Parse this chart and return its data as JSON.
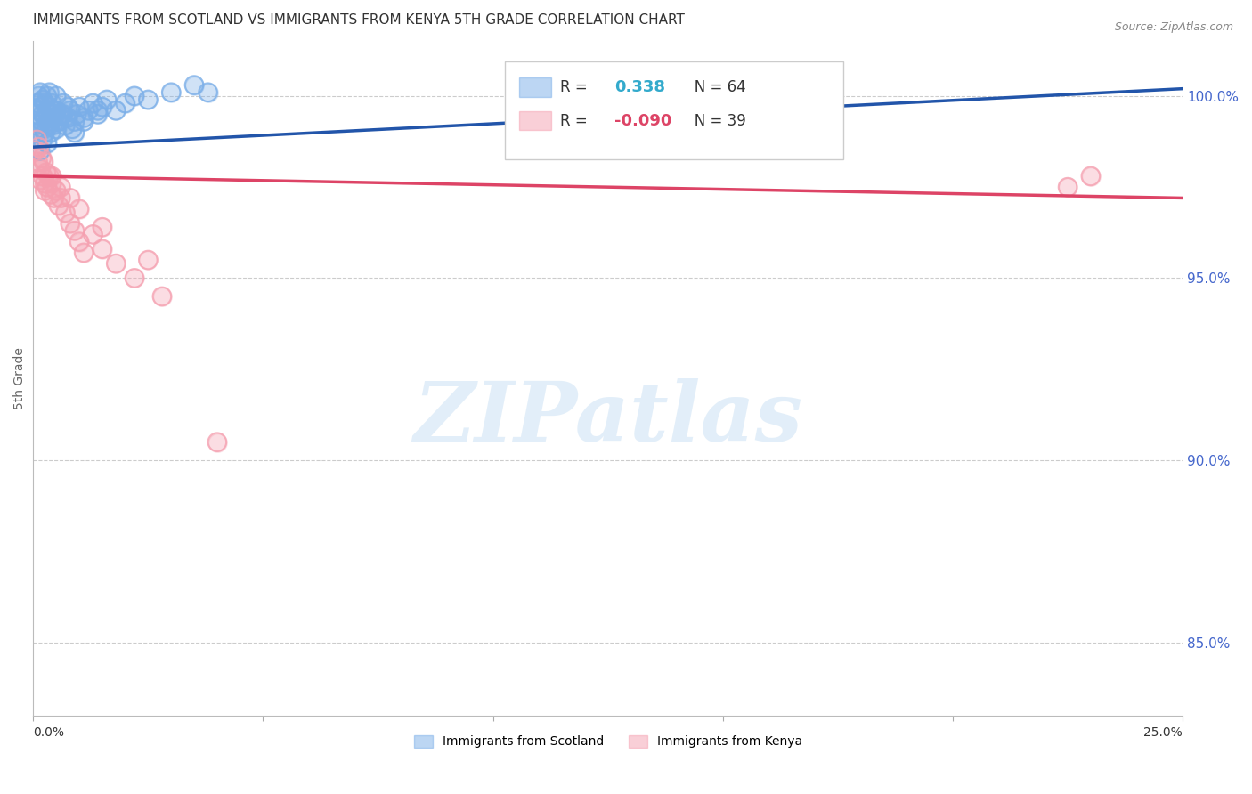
{
  "title": "IMMIGRANTS FROM SCOTLAND VS IMMIGRANTS FROM KENYA 5TH GRADE CORRELATION CHART",
  "source": "Source: ZipAtlas.com",
  "ylabel": "5th Grade",
  "xlim": [
    0.0,
    25.0
  ],
  "ylim": [
    83.0,
    101.5
  ],
  "yticks_right": [
    85.0,
    90.0,
    95.0,
    100.0
  ],
  "ytick_labels_right": [
    "85.0%",
    "90.0%",
    "95.0%",
    "100.0%"
  ],
  "scotland_R": 0.338,
  "scotland_N": 64,
  "kenya_R": -0.09,
  "kenya_N": 39,
  "scotland_color": "#7aaee8",
  "kenya_color": "#f5a0b0",
  "scotland_trend_color": "#2255aa",
  "kenya_trend_color": "#dd4466",
  "watermark_color": "#d0e4f5",
  "watermark": "ZIPatlas",
  "background_color": "#ffffff",
  "grid_color": "#cccccc",
  "axis_label_color": "#4466cc",
  "title_color": "#333333",
  "legend_entries": [
    "Immigrants from Scotland",
    "Immigrants from Kenya"
  ],
  "scotland_x": [
    0.05,
    0.08,
    0.1,
    0.1,
    0.12,
    0.12,
    0.15,
    0.15,
    0.18,
    0.2,
    0.2,
    0.22,
    0.25,
    0.25,
    0.28,
    0.3,
    0.3,
    0.32,
    0.35,
    0.35,
    0.38,
    0.4,
    0.4,
    0.42,
    0.45,
    0.5,
    0.5,
    0.55,
    0.6,
    0.65,
    0.7,
    0.75,
    0.8,
    0.85,
    0.9,
    0.95,
    1.0,
    1.1,
    1.2,
    1.3,
    1.4,
    1.5,
    1.6,
    1.8,
    2.0,
    2.2,
    2.5,
    3.0,
    3.5,
    0.15,
    0.2,
    0.25,
    0.3,
    0.35,
    0.4,
    0.45,
    0.5,
    0.55,
    0.65,
    0.75,
    0.9,
    1.1,
    1.4,
    3.8
  ],
  "scotland_y": [
    99.2,
    99.5,
    99.8,
    99.0,
    99.6,
    100.0,
    99.7,
    100.1,
    99.3,
    99.5,
    99.9,
    99.1,
    99.4,
    99.8,
    99.2,
    99.6,
    100.0,
    99.3,
    99.7,
    100.1,
    99.0,
    99.5,
    99.8,
    99.2,
    99.4,
    99.6,
    100.0,
    99.3,
    99.5,
    99.8,
    99.2,
    99.4,
    99.6,
    99.1,
    99.3,
    99.5,
    99.7,
    99.4,
    99.6,
    99.8,
    99.5,
    99.7,
    99.9,
    99.6,
    99.8,
    100.0,
    99.9,
    100.1,
    100.3,
    98.5,
    98.8,
    99.0,
    98.7,
    99.2,
    99.4,
    99.6,
    99.1,
    99.3,
    99.5,
    99.7,
    99.0,
    99.3,
    99.6,
    100.1
  ],
  "kenya_x": [
    0.05,
    0.08,
    0.1,
    0.12,
    0.15,
    0.18,
    0.2,
    0.22,
    0.25,
    0.28,
    0.3,
    0.35,
    0.38,
    0.4,
    0.45,
    0.5,
    0.55,
    0.6,
    0.7,
    0.8,
    0.9,
    1.0,
    1.1,
    1.3,
    1.5,
    1.8,
    2.2,
    2.8,
    0.15,
    0.25,
    0.4,
    0.6,
    0.8,
    1.0,
    1.5,
    2.5,
    4.0,
    22.5,
    23.0
  ],
  "kenya_y": [
    98.5,
    98.8,
    98.2,
    98.6,
    98.0,
    98.3,
    97.8,
    98.2,
    97.6,
    97.9,
    97.5,
    97.8,
    97.3,
    97.6,
    97.2,
    97.4,
    97.0,
    97.2,
    96.8,
    96.5,
    96.3,
    96.0,
    95.7,
    96.2,
    95.8,
    95.4,
    95.0,
    94.5,
    97.7,
    97.4,
    97.8,
    97.5,
    97.2,
    96.9,
    96.4,
    95.5,
    90.5,
    97.5,
    97.8
  ],
  "scotland_trend_x": [
    0.0,
    25.0
  ],
  "scotland_trend_y": [
    98.6,
    100.2
  ],
  "kenya_trend_x": [
    0.0,
    25.0
  ],
  "kenya_trend_y": [
    97.8,
    97.2
  ]
}
